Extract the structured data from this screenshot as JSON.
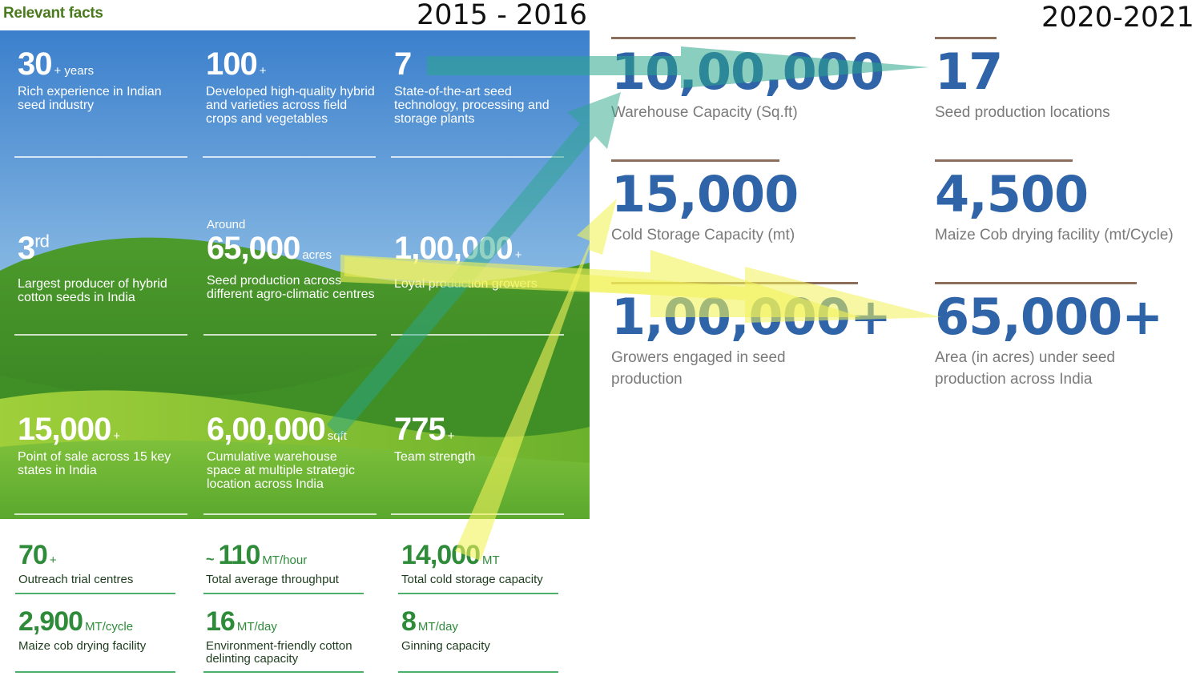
{
  "heading": "Relevant facts",
  "year_left": "2015 - 2016",
  "year_right": "2020-2021",
  "panel_cells": [
    {
      "value": "30",
      "unit": "+ years",
      "desc": "Rich experience in Indian seed industry"
    },
    {
      "value": "100",
      "unit": "+",
      "desc": "Developed high-quality hybrid and varieties across field crops and vegetables"
    },
    {
      "value": "7",
      "unit": "",
      "desc": "State-of-the-art seed technology, processing and storage plants"
    },
    {
      "value": "3",
      "sup": "rd",
      "desc": "Largest producer of hybrid cotton seeds in India"
    },
    {
      "prefix": "Around",
      "value": "65,000",
      "unit": "acres",
      "desc": "Seed production across different agro-climatic centres"
    },
    {
      "value": "1,00,000",
      "unit": "+",
      "desc": "Loyal production growers"
    },
    {
      "value": "15,000",
      "unit": "+",
      "desc": "Point of sale across 15 key states in India"
    },
    {
      "value": "6,00,000",
      "unit": "sqft",
      "desc": "Cumulative warehouse space at multiple strategic location across India"
    },
    {
      "value": "775",
      "unit": "+",
      "desc": "Team strength"
    }
  ],
  "bottom_cells": [
    {
      "value": "70",
      "unit": "+",
      "desc": "Outreach trial centres"
    },
    {
      "tilde": "~",
      "value": "110",
      "unit": "MT/hour",
      "desc": "Total average throughput"
    },
    {
      "value": "14,000",
      "unit": "MT",
      "desc": "Total cold storage capacity"
    },
    {
      "value": "2,900",
      "unit": "MT/cycle",
      "desc": "Maize cob drying facility"
    },
    {
      "value": "16",
      "unit": "MT/day",
      "desc": "Environment-friendly cotton delinting capacity"
    },
    {
      "value": "8",
      "unit": "MT/day",
      "desc": "Ginning capacity"
    }
  ],
  "stats_2021": [
    {
      "value": "10,00,000",
      "label": "Warehouse Capacity (Sq.ft)"
    },
    {
      "value": "17",
      "label": "Seed production locations"
    },
    {
      "value": "15,000",
      "label": "Cold Storage Capacity (mt)"
    },
    {
      "value": "4,500",
      "label": "Maize Cob drying facility (mt/Cycle)"
    },
    {
      "value": "1,00,000+",
      "label": "Growers engaged in seed production"
    },
    {
      "value": "65,000+",
      "label": "Area (in acres) under seed production across India"
    }
  ],
  "colors": {
    "stat_blue": "#2f64a8",
    "stat_bar": "#8d6e5a",
    "heading_green": "#4a7a1e",
    "arrow_teal": "#2aa58a",
    "arrow_yellow": "#f2f25a"
  }
}
